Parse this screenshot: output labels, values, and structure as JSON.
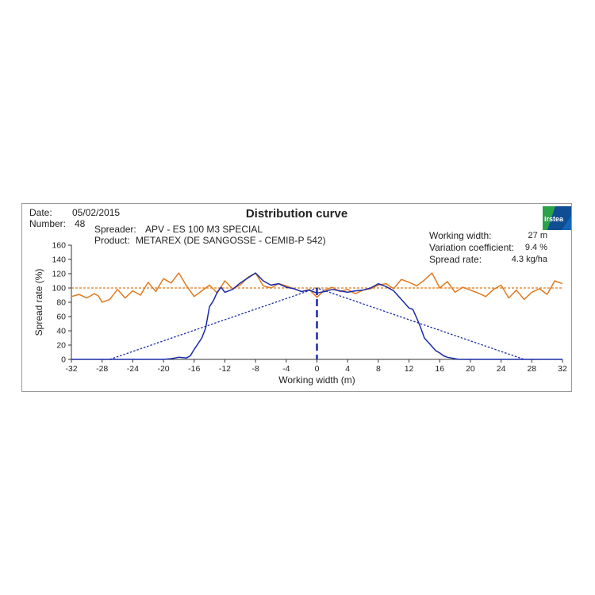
{
  "header": {
    "date_label": "Date:",
    "date_value": "05/02/2015",
    "number_label": "Number:",
    "number_value": "48",
    "title": "Distribution curve",
    "spreader_label": "Spreader:",
    "spreader_value": "APV - ES 100 M3 SPECIAL",
    "product_label": "Product:",
    "product_value": "METAREX (DE SANGOSSE - CEMIB-P 542)"
  },
  "stats": {
    "working_width_label": "Working width:",
    "working_width_value": "27 m",
    "variation_label": "Variation coefficient:",
    "variation_value": "9.4 %",
    "spread_rate_label": "Spread rate:",
    "spread_rate_value": "4.3 kg/ha"
  },
  "logo": {
    "text": "irstea",
    "icon": "irstea-logo",
    "colors": [
      "#1565b5",
      "#2aa24a",
      "#0d3c78"
    ]
  },
  "colors": {
    "overlap": "#e07a1f",
    "single": "#1a2aa8",
    "target": "#e07a1f"
  },
  "chart_data": {
    "type": "line",
    "xlabel": "Working width (m)",
    "ylabel": "Spread rate (%)",
    "xlim": [
      -32,
      32
    ],
    "ylim": [
      0,
      160
    ],
    "xticks": [
      -32,
      -28,
      -24,
      -20,
      -16,
      -12,
      -8,
      -4,
      0,
      4,
      8,
      12,
      16,
      20,
      24,
      28,
      32
    ],
    "yticks": [
      0,
      20,
      40,
      60,
      80,
      100,
      120,
      140,
      160
    ],
    "target_line": 100,
    "working_width_marker": 0,
    "triangle": [
      [
        -27,
        0
      ],
      [
        0,
        100
      ],
      [
        27,
        0
      ]
    ],
    "series": [
      {
        "style": "overlap",
        "x": [
          -32,
          -31,
          -30,
          -29,
          -28.5,
          -28,
          -27,
          -26,
          -25,
          -24,
          -23,
          -22,
          -21,
          -20,
          -19,
          -18,
          -17,
          -16,
          -15,
          -14,
          -13,
          -12,
          -11,
          -10,
          -9,
          -8,
          -7,
          -6,
          -5,
          -4,
          -3,
          -2,
          -1,
          0,
          1,
          2,
          3,
          4,
          5,
          6,
          7,
          8,
          9,
          10,
          11,
          12,
          13,
          14,
          15,
          16,
          17,
          18,
          19,
          20,
          21,
          22,
          23,
          24,
          25,
          26,
          27,
          28,
          29,
          30,
          31,
          32
        ],
        "y": [
          88,
          91,
          86,
          92,
          89,
          80,
          84,
          98,
          86,
          96,
          90,
          108,
          95,
          113,
          107,
          121,
          103,
          88,
          96,
          104,
          93,
          110,
          99,
          104,
          115,
          121,
          103,
          100,
          106,
          103,
          99,
          95,
          98,
          87,
          97,
          101,
          95,
          98,
          92,
          97,
          99,
          104,
          106,
          99,
          112,
          108,
          103,
          111,
          121,
          100,
          109,
          94,
          101,
          97,
          93,
          88,
          98,
          104,
          86,
          97,
          84,
          94,
          99,
          91,
          110,
          106
        ]
      },
      {
        "style": "single",
        "x": [
          -32,
          -20,
          -19,
          -18,
          -17,
          -16.5,
          -16,
          -15,
          -14.5,
          -14,
          -13.5,
          -13,
          -12.5,
          -12,
          -11,
          -10,
          -9,
          -8,
          -7,
          -6,
          -5,
          -4,
          -3,
          -2,
          -1,
          0,
          1,
          2,
          3,
          4,
          5,
          6,
          7,
          8,
          9,
          10,
          10.5,
          11,
          12,
          12.5,
          13,
          13.5,
          14,
          14.5,
          15,
          15.5,
          16,
          16.5,
          17,
          18,
          18.5,
          32
        ],
        "y": [
          0,
          0,
          1,
          3,
          2,
          5,
          14,
          30,
          44,
          74,
          82,
          94,
          101,
          94,
          98,
          107,
          114,
          121,
          110,
          104,
          106,
          101,
          99,
          95,
          97,
          93,
          95,
          98,
          96,
          94,
          96,
          97,
          100,
          106,
          102,
          96,
          90,
          84,
          72,
          70,
          58,
          45,
          30,
          24,
          18,
          12,
          9,
          5,
          3,
          1,
          0,
          0
        ]
      }
    ]
  }
}
